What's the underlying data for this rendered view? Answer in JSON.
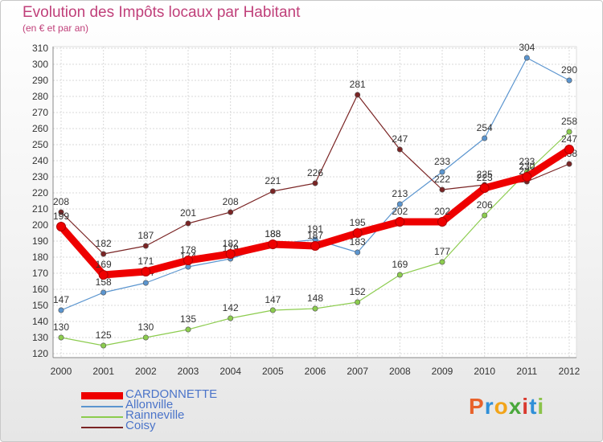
{
  "header": {
    "title": "Evolution des Impôts locaux par Habitant",
    "subtitle": "(en € et par an)"
  },
  "logo": {
    "letters": [
      "P",
      "r",
      "o",
      "x",
      "i",
      "t",
      "i"
    ],
    "colors": [
      "#e8622b",
      "#2f8fd8",
      "#f2a419",
      "#4aa83c",
      "#d93a2f",
      "#2f8fd8",
      "#8bc34a"
    ]
  },
  "chart_data": {
    "type": "line",
    "x": [
      "2000",
      "2001",
      "2002",
      "2003",
      "2004",
      "2005",
      "2006",
      "2007",
      "2008",
      "2009",
      "2010",
      "2011",
      "2012"
    ],
    "ylim": [
      120,
      310
    ],
    "yticks": [
      120,
      130,
      140,
      150,
      160,
      170,
      180,
      190,
      200,
      210,
      220,
      230,
      240,
      250,
      260,
      270,
      280,
      290,
      300,
      310
    ],
    "grid": true,
    "legend": "bottom-left",
    "series": [
      {
        "name": "Allonville",
        "color": "#5b95cf",
        "values": [
          147,
          158,
          164,
          174,
          179,
          188,
          191,
          183,
          213,
          233,
          254,
          304,
          290
        ],
        "labels": [
          "147",
          "158",
          "164",
          "174",
          "179",
          "188",
          "191",
          "183",
          "213",
          "233",
          "254",
          "304",
          "290"
        ]
      },
      {
        "name": "Rainneville",
        "color": "#8ccc4e",
        "values": [
          130,
          125,
          130,
          135,
          142,
          147,
          148,
          152,
          169,
          177,
          206,
          233,
          258
        ],
        "labels": [
          "130",
          "125",
          "130",
          "135",
          "142",
          "147",
          "148",
          "152",
          "169",
          "177",
          "206",
          "233",
          "258"
        ]
      },
      {
        "name": "Coisy",
        "color": "#7a2424",
        "values": [
          208,
          182,
          187,
          201,
          208,
          221,
          226,
          281,
          247,
          222,
          225,
          227,
          238
        ],
        "labels": [
          "208",
          "182",
          "187",
          "201",
          "208",
          "221",
          "226",
          "281",
          "247",
          "222",
          "225",
          "227",
          "238"
        ]
      },
      {
        "name": "CARDONNETTE",
        "color": "#ee0000",
        "values": [
          199,
          169,
          171,
          178,
          182,
          188,
          187,
          195,
          202,
          202,
          223,
          230,
          247
        ],
        "labels": [
          "199",
          "169",
          "171",
          "178",
          "182",
          "188",
          "187",
          "195",
          "202",
          "202",
          "223",
          "230",
          "247"
        ]
      }
    ],
    "legend_order": [
      "CARDONNETTE",
      "Allonville",
      "Rainneville",
      "Coisy"
    ]
  }
}
